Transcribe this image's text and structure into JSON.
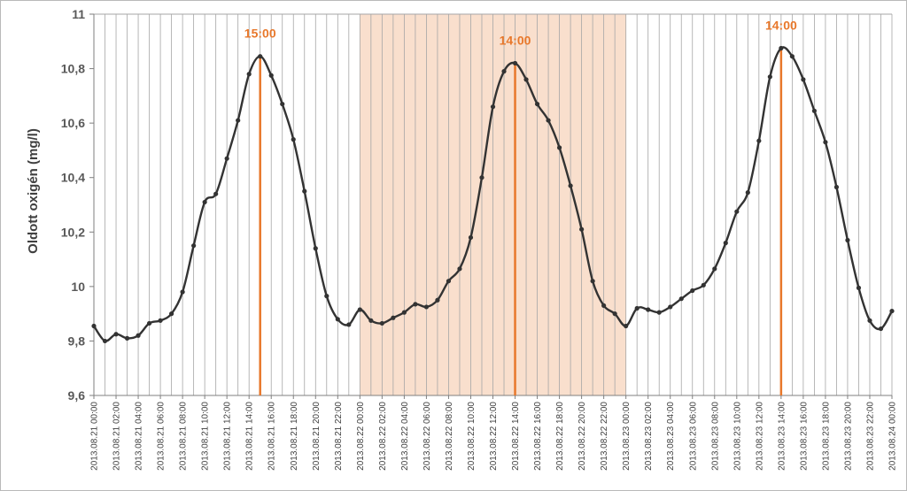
{
  "chart_data": {
    "type": "line",
    "ylabel": "Oldott oxigén (mg/l)",
    "xlabel": "",
    "ylim": [
      9.6,
      11
    ],
    "y_ticks": [
      "9,6",
      "9,8",
      "10",
      "10,2",
      "10,4",
      "10,6",
      "10,8",
      "11"
    ],
    "y_tick_values": [
      9.6,
      9.8,
      10.0,
      10.2,
      10.4,
      10.6,
      10.8,
      11.0
    ],
    "x_ticks": [
      "2013.08.21 00:00",
      "2013.08.21 02:00",
      "2013.08.21 04:00",
      "2013.08.21 06:00",
      "2013.08.21 08:00",
      "2013.08.21 10:00",
      "2013.08.21 12:00",
      "2013.08.21 14:00",
      "2013.08.21 16:00",
      "2013.08.21 18:00",
      "2013.08.21 20:00",
      "2013.08.21 22:00",
      "2013.08.22 00:00",
      "2013.08.22 02:00",
      "2013.08.22 04:00",
      "2013.08.22 06:00",
      "2013.08.22 08:00",
      "2013.08.22 10:00",
      "2013.08.22 12:00",
      "2013.08.22 14:00",
      "2013.08.22 16:00",
      "2013.08.22 18:00",
      "2013.08.22 20:00",
      "2013.08.22 22:00",
      "2013.08.23 00:00",
      "2013.08.23 02:00",
      "2013.08.23 04:00",
      "2013.08.23 06:00",
      "2013.08.23 08:00",
      "2013.08.23 10:00",
      "2013.08.23 12:00",
      "2013.08.23 14:00",
      "2013.08.23 16:00",
      "2013.08.23 18:00",
      "2013.08.23 20:00",
      "2013.08.23 22:00",
      "2013.08.24 00:00"
    ],
    "grid": true,
    "shaded_region": {
      "from": "2013.08.22 00:00",
      "to": "2013.08.23 00:00",
      "color": "#f9dfcd"
    },
    "annotations": [
      {
        "label": "15:00",
        "at": "2013.08.21 15:00",
        "value": 10.845
      },
      {
        "label": "14:00",
        "at": "2013.08.22 14:00",
        "value": 10.82
      },
      {
        "label": "14:00",
        "at": "2013.08.23 14:00",
        "value": 10.875
      }
    ],
    "series": [
      {
        "color": "#333333",
        "annotation_color": "#e8782b",
        "x": [
          "2013.08.21 00:00",
          "2013.08.21 01:00",
          "2013.08.21 02:00",
          "2013.08.21 03:00",
          "2013.08.21 04:00",
          "2013.08.21 05:00",
          "2013.08.21 06:00",
          "2013.08.21 07:00",
          "2013.08.21 08:00",
          "2013.08.21 09:00",
          "2013.08.21 10:00",
          "2013.08.21 11:00",
          "2013.08.21 12:00",
          "2013.08.21 13:00",
          "2013.08.21 14:00",
          "2013.08.21 15:00",
          "2013.08.21 16:00",
          "2013.08.21 17:00",
          "2013.08.21 18:00",
          "2013.08.21 19:00",
          "2013.08.21 20:00",
          "2013.08.21 21:00",
          "2013.08.21 22:00",
          "2013.08.21 23:00",
          "2013.08.22 00:00",
          "2013.08.22 01:00",
          "2013.08.22 02:00",
          "2013.08.22 03:00",
          "2013.08.22 04:00",
          "2013.08.22 05:00",
          "2013.08.22 06:00",
          "2013.08.22 07:00",
          "2013.08.22 08:00",
          "2013.08.22 09:00",
          "2013.08.22 10:00",
          "2013.08.22 11:00",
          "2013.08.22 12:00",
          "2013.08.22 13:00",
          "2013.08.22 14:00",
          "2013.08.22 15:00",
          "2013.08.22 16:00",
          "2013.08.22 17:00",
          "2013.08.22 18:00",
          "2013.08.22 19:00",
          "2013.08.22 20:00",
          "2013.08.22 21:00",
          "2013.08.22 22:00",
          "2013.08.22 23:00",
          "2013.08.23 00:00",
          "2013.08.23 01:00",
          "2013.08.23 02:00",
          "2013.08.23 03:00",
          "2013.08.23 04:00",
          "2013.08.23 05:00",
          "2013.08.23 06:00",
          "2013.08.23 07:00",
          "2013.08.23 08:00",
          "2013.08.23 09:00",
          "2013.08.23 10:00",
          "2013.08.23 11:00",
          "2013.08.23 12:00",
          "2013.08.23 13:00",
          "2013.08.23 14:00",
          "2013.08.23 15:00",
          "2013.08.23 16:00",
          "2013.08.23 17:00",
          "2013.08.23 18:00",
          "2013.08.23 19:00",
          "2013.08.23 20:00",
          "2013.08.23 21:00",
          "2013.08.23 22:00",
          "2013.08.23 23:00",
          "2013.08.24 00:00"
        ],
        "values": [
          9.855,
          9.8,
          9.825,
          9.81,
          9.82,
          9.865,
          9.875,
          9.9,
          9.98,
          10.15,
          10.31,
          10.34,
          10.47,
          10.61,
          10.78,
          10.845,
          10.775,
          10.67,
          10.54,
          10.35,
          10.14,
          9.965,
          9.88,
          9.86,
          9.915,
          9.875,
          9.865,
          9.885,
          9.905,
          9.935,
          9.925,
          9.95,
          10.02,
          10.065,
          10.18,
          10.4,
          10.66,
          10.79,
          10.82,
          10.76,
          10.67,
          10.61,
          10.51,
          10.37,
          10.21,
          10.02,
          9.93,
          9.9,
          9.855,
          9.92,
          9.915,
          9.905,
          9.925,
          9.955,
          9.985,
          10.005,
          10.065,
          10.16,
          10.275,
          10.345,
          10.535,
          10.77,
          10.875,
          10.845,
          10.76,
          10.645,
          10.53,
          10.365,
          10.17,
          9.995,
          9.875,
          9.845,
          9.91
        ]
      }
    ]
  }
}
